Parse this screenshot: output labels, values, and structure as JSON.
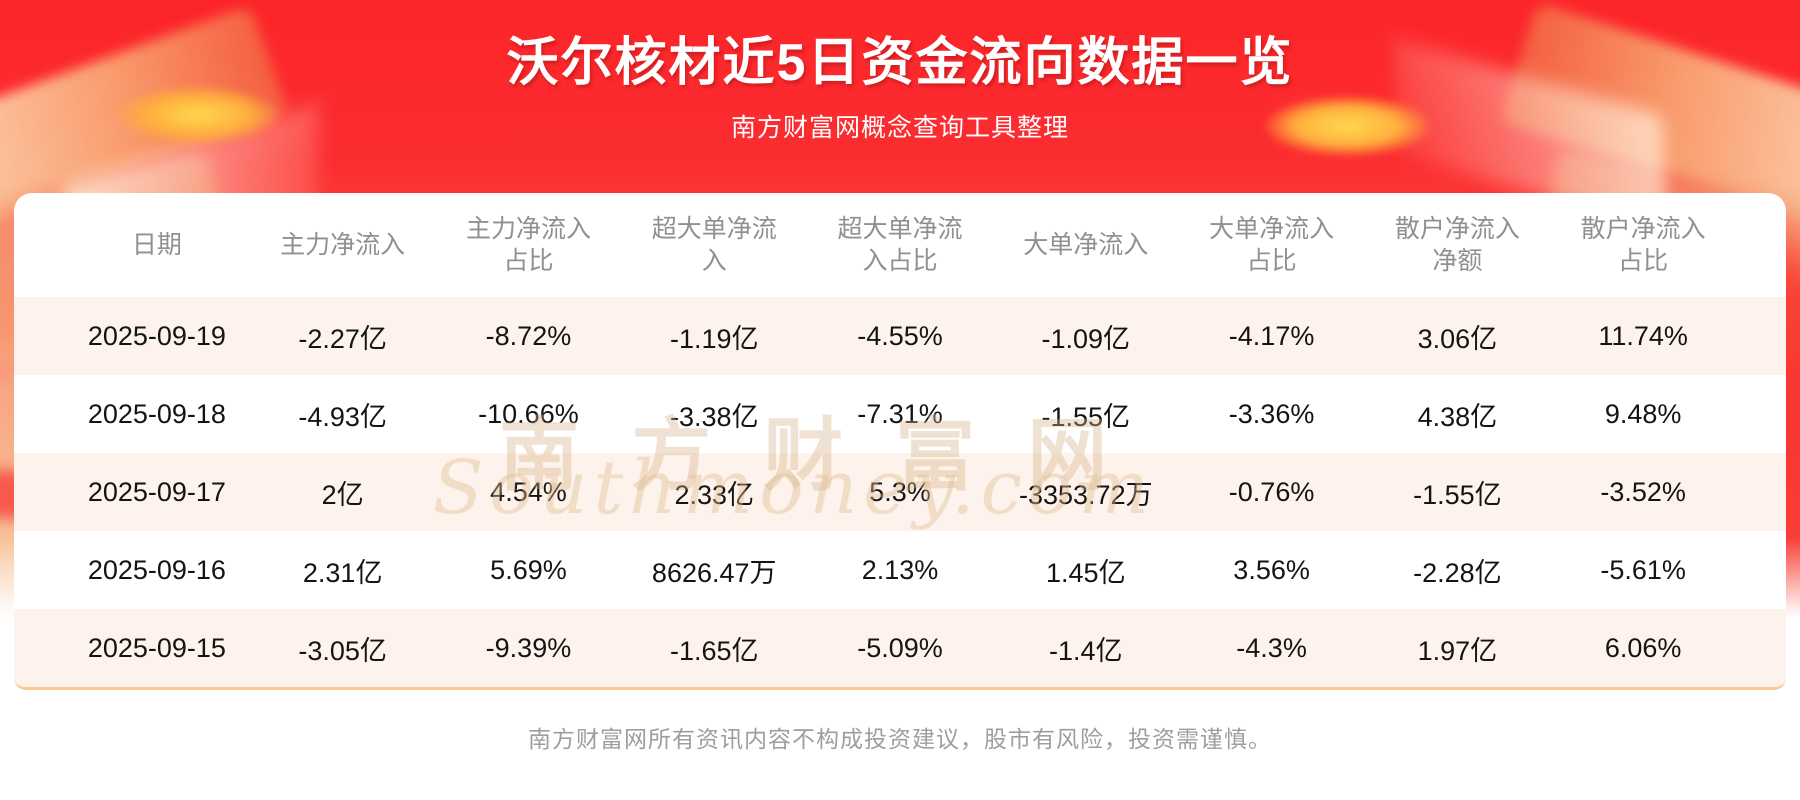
{
  "header": {
    "title": "沃尔核材近5日资金流向数据一览",
    "subtitle": "南方财富网概念查询工具整理"
  },
  "table": {
    "columns": [
      "日期",
      "主力净流入",
      "主力净流入占比",
      "超大单净流入",
      "超大单净流入占比",
      "大单净流入",
      "大单净流入占比",
      "散户净流入净额",
      "散户净流入占比"
    ],
    "rows": [
      [
        "2025-09-19",
        "-2.27亿",
        "-8.72%",
        "-1.19亿",
        "-4.55%",
        "-1.09亿",
        "-4.17%",
        "3.06亿",
        "11.74%"
      ],
      [
        "2025-09-18",
        "-4.93亿",
        "-10.66%",
        "-3.38亿",
        "-7.31%",
        "-1.55亿",
        "-3.36%",
        "4.38亿",
        "9.48%"
      ],
      [
        "2025-09-17",
        "2亿",
        "4.54%",
        "2.33亿",
        "5.3%",
        "-3353.72万",
        "-0.76%",
        "-1.55亿",
        "-3.52%"
      ],
      [
        "2025-09-16",
        "2.31亿",
        "5.69%",
        "8626.47万",
        "2.13%",
        "1.45亿",
        "3.56%",
        "-2.28亿",
        "-5.61%"
      ],
      [
        "2025-09-15",
        "-3.05亿",
        "-9.39%",
        "-1.65亿",
        "-5.09%",
        "-1.4亿",
        "-4.3%",
        "1.97亿",
        "6.06%"
      ]
    ]
  },
  "watermark": {
    "line1": "南方财富网",
    "line2": "Southmoney.com"
  },
  "footer": {
    "disclaimer": "南方财富网所有资讯内容不构成投资建议，股市有风险，投资需谨慎。"
  },
  "colors": {
    "banner_red": "#fb2a2e",
    "banner_orange": "#f5a57d",
    "row_alt_pink": "#fdf3ec",
    "table_bottom_border": "#f8c98f",
    "header_text": "#909090",
    "cell_text": "#141414",
    "footer_text": "#9e9e9e",
    "title_text": "#ffffff"
  },
  "chart_data": {
    "type": "table",
    "title": "沃尔核材近5日资金流向数据一览",
    "columns": [
      "日期",
      "主力净流入",
      "主力净流入占比",
      "超大单净流入",
      "超大单净流入占比",
      "大单净流入",
      "大单净流入占比",
      "散户净流入净额",
      "散户净流入占比"
    ],
    "rows": [
      [
        "2025-09-19",
        "-2.27亿",
        "-8.72%",
        "-1.19亿",
        "-4.55%",
        "-1.09亿",
        "-4.17%",
        "3.06亿",
        "11.74%"
      ],
      [
        "2025-09-18",
        "-4.93亿",
        "-10.66%",
        "-3.38亿",
        "-7.31%",
        "-1.55亿",
        "-3.36%",
        "4.38亿",
        "9.48%"
      ],
      [
        "2025-09-17",
        "2亿",
        "4.54%",
        "2.33亿",
        "5.3%",
        "-3353.72万",
        "-0.76%",
        "-1.55亿",
        "-3.52%"
      ],
      [
        "2025-09-16",
        "2.31亿",
        "5.69%",
        "8626.47万",
        "2.13%",
        "1.45亿",
        "3.56%",
        "-2.28亿",
        "-5.61%"
      ],
      [
        "2025-09-15",
        "-3.05亿",
        "-9.39%",
        "-1.65亿",
        "-5.09%",
        "-1.4亿",
        "-4.3%",
        "1.97亿",
        "6.06%"
      ]
    ]
  }
}
